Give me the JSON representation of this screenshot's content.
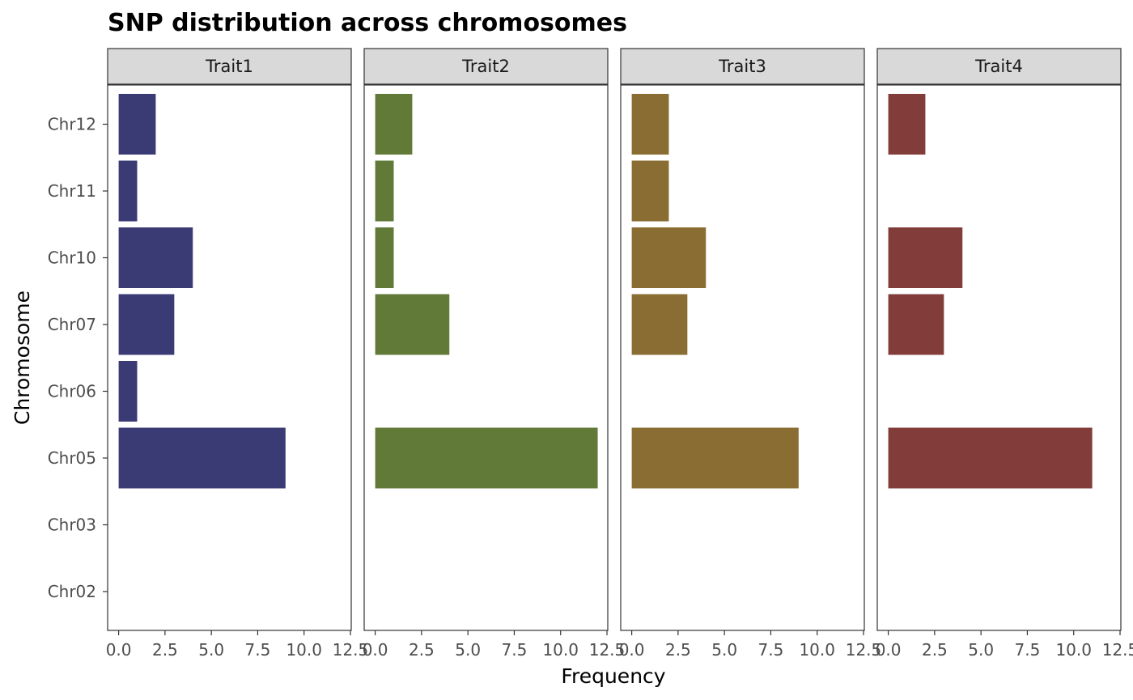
{
  "chart_data": {
    "type": "bar",
    "orientation": "horizontal",
    "title": "SNP distribution across chromosomes",
    "xlabel": "Frequency",
    "ylabel": "Chromosome",
    "categories": [
      "Chr02",
      "Chr03",
      "Chr05",
      "Chr06",
      "Chr07",
      "Chr10",
      "Chr11",
      "Chr12"
    ],
    "xlim": [
      -0.55,
      12.5
    ],
    "x_ticks": [
      0,
      2.5,
      5,
      7.5,
      10,
      12.5
    ],
    "x_tick_labels": [
      "0.0",
      "2.5",
      "5.0",
      "7.5",
      "10.0",
      "12.5"
    ],
    "grid": false,
    "legend": "none",
    "facets": [
      {
        "name": "Trait1",
        "color": "#3a3a75",
        "values": [
          0,
          0,
          9,
          1,
          3,
          4,
          1,
          2
        ]
      },
      {
        "name": "Trait2",
        "color": "#627a38",
        "values": [
          0,
          0,
          12,
          0,
          4,
          1,
          1,
          2
        ]
      },
      {
        "name": "Trait3",
        "color": "#8a6d32",
        "values": [
          0,
          0,
          9,
          0,
          3,
          4,
          2,
          2
        ]
      },
      {
        "name": "Trait4",
        "color": "#823c3a",
        "values": [
          0,
          0,
          11,
          0,
          3,
          4,
          0,
          2
        ]
      }
    ]
  }
}
